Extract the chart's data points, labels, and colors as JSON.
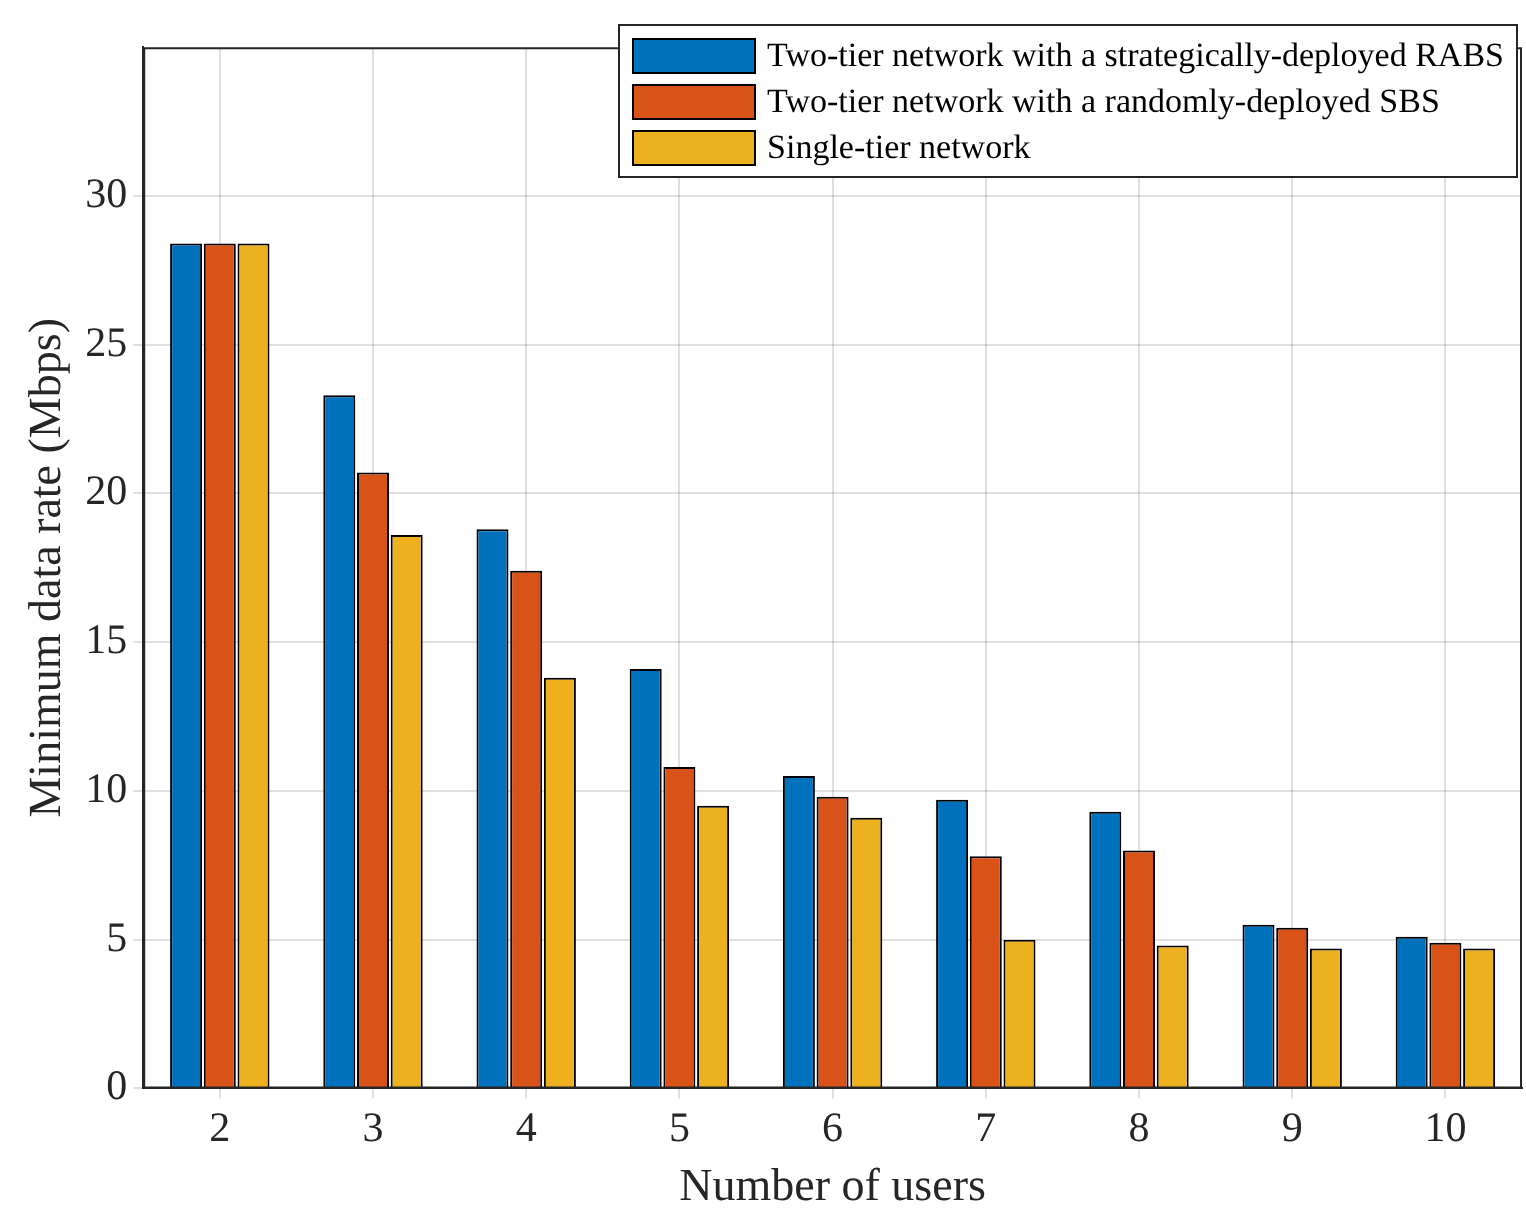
{
  "chart_data": {
    "type": "bar",
    "xlabel": "Number of users",
    "ylabel": "Minimum data rate (Mbps)",
    "categories": [
      "2",
      "3",
      "4",
      "5",
      "6",
      "7",
      "8",
      "9",
      "10"
    ],
    "series": [
      {
        "name": "Two-tier network with a strategically-deployed RABS",
        "color": "#0072bd",
        "values": [
          28.4,
          23.3,
          18.8,
          14.1,
          10.5,
          9.7,
          9.3,
          5.5,
          5.1
        ]
      },
      {
        "name": "Two-tier network with a randomly-deployed SBS",
        "color": "#d95319",
        "values": [
          28.4,
          20.7,
          17.4,
          10.8,
          9.8,
          7.8,
          8.0,
          5.4,
          4.9
        ]
      },
      {
        "name": "Single-tier network",
        "color": "#edb120",
        "values": [
          28.4,
          18.6,
          13.8,
          9.5,
          9.1,
          5.0,
          4.8,
          4.7,
          4.7
        ]
      }
    ],
    "ylim": [
      0,
      35
    ],
    "yticks": [
      0,
      5,
      10,
      15,
      20,
      25,
      30
    ],
    "grid": true,
    "legend": "top right"
  }
}
